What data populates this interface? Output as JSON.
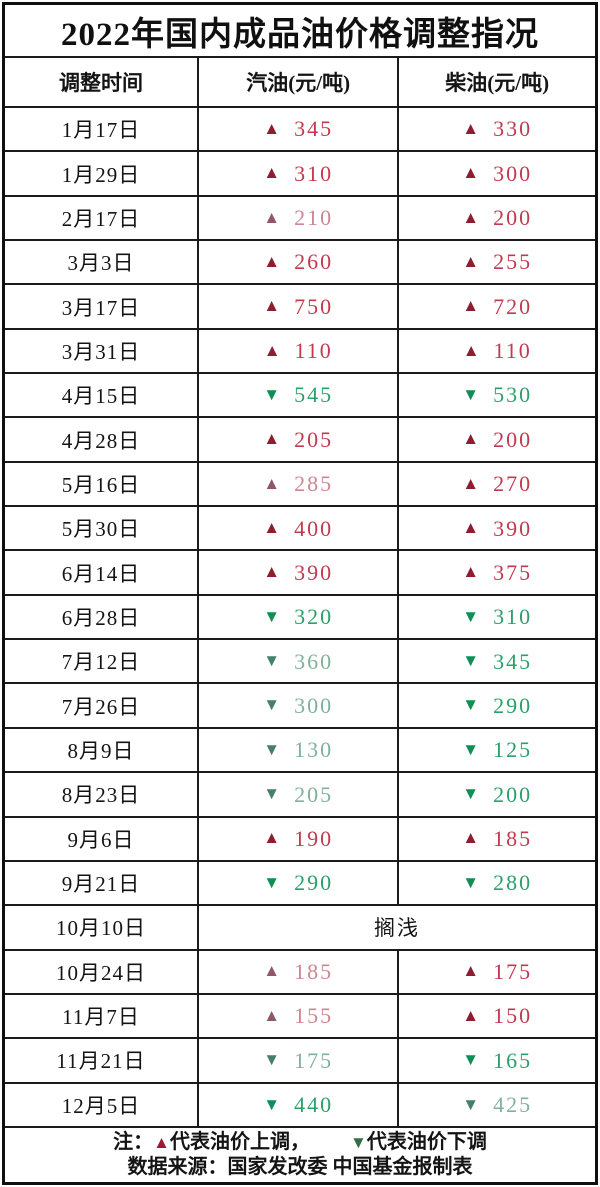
{
  "title": "2022年国内成品油价格调整指况",
  "columns": [
    "调整时间",
    "汽油(元/吨)",
    "柴油(元/吨)"
  ],
  "legend": {
    "note_prefix": "注：",
    "up_symbol": "▲",
    "up_text": "代表油价上调，",
    "down_symbol": "▼",
    "down_text": "代表油价下调",
    "source": "数据来源：国家发改委  中国基金报制表"
  },
  "palette": {
    "up_triangle": "#8e1d30",
    "up_text": "#c23a50",
    "up_triangle_muted": "#8f5863",
    "up_text_muted": "#cc8792",
    "down_triangle": "#0f8f55",
    "down_text": "#2aa169",
    "down_triangle_muted": "#47806a",
    "down_text_muted": "#7fb29a",
    "legend_up": "#9c1b33",
    "legend_down": "#356e46",
    "border": "#1b1b1b",
    "title_color": "#101010"
  },
  "rows": [
    {
      "date": "1月17日",
      "gas": {
        "dir": "up",
        "value": "345"
      },
      "diesel": {
        "dir": "up",
        "value": "330"
      }
    },
    {
      "date": "1月29日",
      "gas": {
        "dir": "up",
        "value": "310"
      },
      "diesel": {
        "dir": "up",
        "value": "300"
      }
    },
    {
      "date": "2月17日",
      "gas": {
        "dir": "up",
        "value": "210",
        "tone": "muted"
      },
      "diesel": {
        "dir": "up",
        "value": "200"
      }
    },
    {
      "date": "3月3日",
      "gas": {
        "dir": "up",
        "value": "260"
      },
      "diesel": {
        "dir": "up",
        "value": "255"
      }
    },
    {
      "date": "3月17日",
      "gas": {
        "dir": "up",
        "value": "750"
      },
      "diesel": {
        "dir": "up",
        "value": "720"
      }
    },
    {
      "date": "3月31日",
      "gas": {
        "dir": "up",
        "value": "110"
      },
      "diesel": {
        "dir": "up",
        "value": "110"
      }
    },
    {
      "date": "4月15日",
      "gas": {
        "dir": "down",
        "value": "545"
      },
      "diesel": {
        "dir": "down",
        "value": "530"
      }
    },
    {
      "date": "4月28日",
      "gas": {
        "dir": "up",
        "value": "205"
      },
      "diesel": {
        "dir": "up",
        "value": "200"
      }
    },
    {
      "date": "5月16日",
      "gas": {
        "dir": "up",
        "value": "285",
        "tone": "muted"
      },
      "diesel": {
        "dir": "up",
        "value": "270"
      }
    },
    {
      "date": "5月30日",
      "gas": {
        "dir": "up",
        "value": "400"
      },
      "diesel": {
        "dir": "up",
        "value": "390"
      }
    },
    {
      "date": "6月14日",
      "gas": {
        "dir": "up",
        "value": "390"
      },
      "diesel": {
        "dir": "up",
        "value": "375"
      }
    },
    {
      "date": "6月28日",
      "gas": {
        "dir": "down",
        "value": "320"
      },
      "diesel": {
        "dir": "down",
        "value": "310"
      }
    },
    {
      "date": "7月12日",
      "gas": {
        "dir": "down",
        "value": "360",
        "tone": "muted"
      },
      "diesel": {
        "dir": "down",
        "value": "345"
      }
    },
    {
      "date": "7月26日",
      "gas": {
        "dir": "down",
        "value": "300",
        "tone": "muted"
      },
      "diesel": {
        "dir": "down",
        "value": "290"
      }
    },
    {
      "date": "8月9日",
      "gas": {
        "dir": "down",
        "value": "130",
        "tone": "muted"
      },
      "diesel": {
        "dir": "down",
        "value": "125"
      }
    },
    {
      "date": "8月23日",
      "gas": {
        "dir": "down",
        "value": "205",
        "tone": "muted"
      },
      "diesel": {
        "dir": "down",
        "value": "200"
      }
    },
    {
      "date": "9月6日",
      "gas": {
        "dir": "up",
        "value": "190"
      },
      "diesel": {
        "dir": "up",
        "value": "185"
      }
    },
    {
      "date": "9月21日",
      "gas": {
        "dir": "down",
        "value": "290"
      },
      "diesel": {
        "dir": "down",
        "value": "280"
      }
    },
    {
      "date": "10月10日",
      "merged": "搁浅"
    },
    {
      "date": "10月24日",
      "gas": {
        "dir": "up",
        "value": "185",
        "tone": "muted"
      },
      "diesel": {
        "dir": "up",
        "value": "175"
      }
    },
    {
      "date": "11月7日",
      "gas": {
        "dir": "up",
        "value": "155",
        "tone": "muted"
      },
      "diesel": {
        "dir": "up",
        "value": "150"
      }
    },
    {
      "date": "11月21日",
      "gas": {
        "dir": "down",
        "value": "175",
        "tone": "muted"
      },
      "diesel": {
        "dir": "down",
        "value": "165"
      }
    },
    {
      "date": "12月5日",
      "gas": {
        "dir": "down",
        "value": "440"
      },
      "diesel": {
        "dir": "down",
        "value": "425",
        "tone": "muted"
      }
    }
  ],
  "chart_data": {
    "type": "table",
    "title": "2022年国内成品油价格调整指况",
    "columns": [
      "调整时间",
      "汽油(元/吨)",
      "柴油(元/吨)"
    ],
    "categories": [
      "1月17日",
      "1月29日",
      "2月17日",
      "3月3日",
      "3月17日",
      "3月31日",
      "4月15日",
      "4月28日",
      "5月16日",
      "5月30日",
      "6月14日",
      "6月28日",
      "7月12日",
      "7月26日",
      "8月9日",
      "8月23日",
      "9月6日",
      "9月21日",
      "10月10日",
      "10月24日",
      "11月7日",
      "11月21日",
      "12月5日"
    ],
    "series": [
      {
        "name": "汽油(元/吨)",
        "values": [
          345,
          310,
          210,
          260,
          750,
          110,
          -545,
          205,
          285,
          400,
          390,
          -320,
          -360,
          -300,
          -130,
          -205,
          190,
          -290,
          null,
          185,
          155,
          -175,
          -440
        ]
      },
      {
        "name": "柴油(元/吨)",
        "values": [
          330,
          300,
          200,
          255,
          720,
          110,
          -530,
          200,
          270,
          390,
          375,
          -310,
          -345,
          -290,
          -125,
          -200,
          185,
          -280,
          null,
          175,
          150,
          -165,
          -425
        ]
      }
    ],
    "annotations": [
      "10月10日：搁浅",
      "▲代表油价上调",
      "▼代表油价下调"
    ],
    "source": "数据来源：国家发改委  中国基金报制表"
  }
}
